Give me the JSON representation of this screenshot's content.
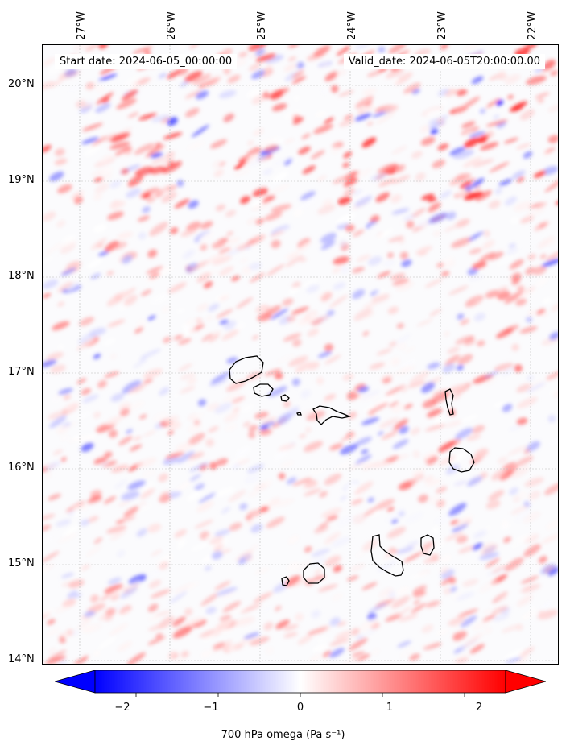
{
  "map": {
    "start_date_label": "Start date: 2024-06-05_00:00:00",
    "valid_date_label": "Valid_date: 2024-06-05T20:00:00.00",
    "lon_labels": [
      "27°W",
      "26°W",
      "25°W",
      "24°W",
      "23°W",
      "22°W"
    ],
    "lat_labels": [
      "20°N",
      "19°N",
      "18°N",
      "17°N",
      "16°N",
      "15°N",
      "14°N"
    ],
    "lon_range": [
      -27.4,
      -21.7
    ],
    "lat_range": [
      13.95,
      20.42
    ],
    "field": "700 hPa omega",
    "coastline_color": "#000000",
    "gridlines": true
  },
  "colorbar": {
    "label": "700 hPa omega (Pa s$^{-1}$)",
    "label_display": "700 hPa omega (Pa s⁻¹)",
    "ticks": [
      "−2",
      "−1",
      "0",
      "1",
      "2"
    ],
    "tick_values": [
      -2,
      -1,
      0,
      1,
      2
    ],
    "range": [
      -2.5,
      2.5
    ],
    "colormap": "bwr",
    "colors": {
      "low": "#0000ff",
      "mid": "#ffffff",
      "high": "#ff0000"
    }
  }
}
